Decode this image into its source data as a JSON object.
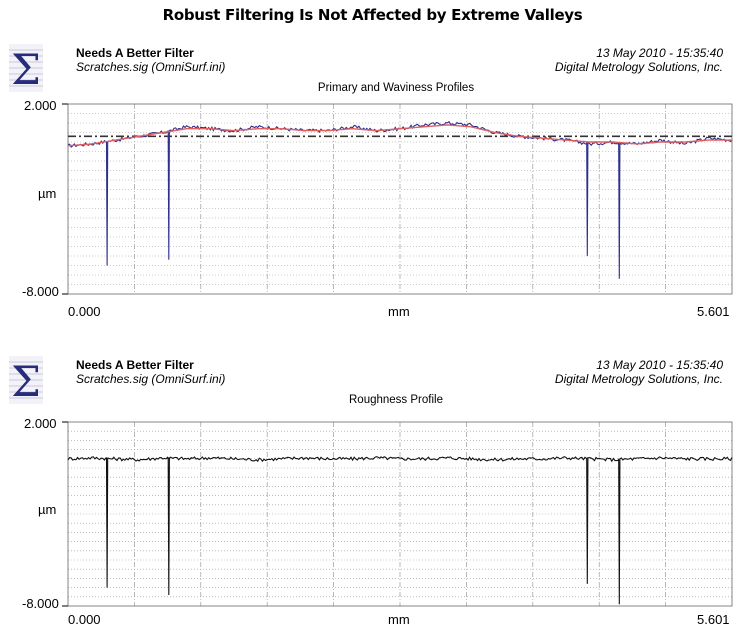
{
  "page_title": "Robust Filtering Is Not Affected by Extreme Valleys",
  "colors": {
    "profile_blue": "#2c2f8e",
    "waviness_red": "#e06060",
    "roughness": "#111111",
    "grid": "#9a9a9a"
  },
  "panels": [
    {
      "name": "Needs A Better Filter",
      "file": "Scratches.sig  (OmniSurf.ini)",
      "date": "13 May 2010 - 15:35:40",
      "company": "Digital Metrology Solutions, Inc.",
      "subtitle": "Primary and Waviness Profiles",
      "ymax_label": "2.000",
      "ymin_label": "-8.000",
      "y_unit": "µm",
      "xmin_label": "0.000",
      "xmax_label": "5.601",
      "x_unit": "mm"
    },
    {
      "name": "Needs A Better Filter",
      "file": "Scratches.sig  (OmniSurf.ini)",
      "date": "13 May 2010 - 15:35:40",
      "company": "Digital Metrology Solutions, Inc.",
      "subtitle": "Roughness Profile",
      "ymax_label": "2.000",
      "ymin_label": "-8.000",
      "y_unit": "µm",
      "xmin_label": "0.000",
      "xmax_label": "5.601",
      "x_unit": "mm"
    }
  ],
  "chart_data": [
    {
      "type": "line",
      "title": "Primary and Waviness Profiles",
      "xlabel": "mm",
      "ylabel": "µm",
      "xlim": [
        0.0,
        5.601
      ],
      "ylim": [
        -8.0,
        2.0
      ],
      "grid": true,
      "reference_line_y": 0.3,
      "series": [
        {
          "name": "primary",
          "x": [
            0.0,
            0.2,
            0.4,
            0.6,
            0.8,
            1.0,
            1.2,
            1.4,
            1.6,
            1.8,
            2.0,
            2.2,
            2.4,
            2.6,
            2.8,
            3.0,
            3.2,
            3.4,
            3.6,
            3.8,
            4.0,
            4.2,
            4.4,
            4.6,
            4.8,
            5.0,
            5.2,
            5.4,
            5.601
          ],
          "y": [
            -0.2,
            -0.1,
            0.1,
            0.3,
            0.5,
            0.8,
            0.7,
            0.6,
            0.8,
            0.7,
            0.6,
            0.6,
            0.8,
            0.6,
            0.7,
            0.9,
            1.0,
            0.9,
            0.5,
            0.3,
            0.2,
            0.1,
            -0.1,
            0.0,
            -0.1,
            0.1,
            -0.1,
            0.2,
            0.1
          ]
        },
        {
          "name": "waviness",
          "x": [
            0.0,
            0.2,
            0.4,
            0.6,
            0.8,
            1.0,
            1.2,
            1.4,
            1.6,
            1.8,
            2.0,
            2.2,
            2.4,
            2.6,
            2.8,
            3.0,
            3.2,
            3.4,
            3.6,
            3.8,
            4.0,
            4.2,
            4.4,
            4.6,
            4.8,
            5.0,
            5.2,
            5.4,
            5.601
          ],
          "y": [
            -0.2,
            -0.1,
            0.1,
            0.3,
            0.5,
            0.7,
            0.7,
            0.6,
            0.7,
            0.7,
            0.6,
            0.6,
            0.7,
            0.6,
            0.7,
            0.8,
            0.9,
            0.8,
            0.5,
            0.3,
            0.2,
            0.1,
            0.0,
            0.0,
            -0.1,
            0.0,
            0.0,
            0.1,
            0.1
          ]
        }
      ],
      "valleys": [
        {
          "x": 0.33,
          "y": -6.5
        },
        {
          "x": 0.85,
          "y": -6.2
        },
        {
          "x": 4.38,
          "y": -6.0
        },
        {
          "x": 4.65,
          "y": -7.2
        }
      ]
    },
    {
      "type": "line",
      "title": "Roughness Profile",
      "xlabel": "mm",
      "ylabel": "µm",
      "xlim": [
        0.0,
        5.601
      ],
      "ylim": [
        -8.0,
        2.0
      ],
      "grid": true,
      "series": [
        {
          "name": "roughness",
          "x": [
            0.0,
            0.2,
            0.4,
            0.6,
            0.8,
            1.0,
            1.2,
            1.4,
            1.6,
            1.8,
            2.0,
            2.2,
            2.4,
            2.6,
            2.8,
            3.0,
            3.2,
            3.4,
            3.6,
            3.8,
            4.0,
            4.2,
            4.4,
            4.6,
            4.8,
            5.0,
            5.2,
            5.4,
            5.601
          ],
          "y": [
            0.0,
            0.05,
            0.0,
            -0.05,
            0.05,
            0.0,
            0.05,
            0.0,
            -0.05,
            0.0,
            0.05,
            0.0,
            0.0,
            0.05,
            0.0,
            0.0,
            0.05,
            0.0,
            -0.05,
            0.0,
            0.0,
            0.05,
            0.0,
            -0.05,
            0.0,
            0.05,
            0.0,
            0.0,
            0.0
          ]
        }
      ],
      "valleys": [
        {
          "x": 0.33,
          "y": -7.0
        },
        {
          "x": 0.85,
          "y": -7.4
        },
        {
          "x": 4.38,
          "y": -6.8
        },
        {
          "x": 4.65,
          "y": -7.9
        }
      ]
    }
  ]
}
